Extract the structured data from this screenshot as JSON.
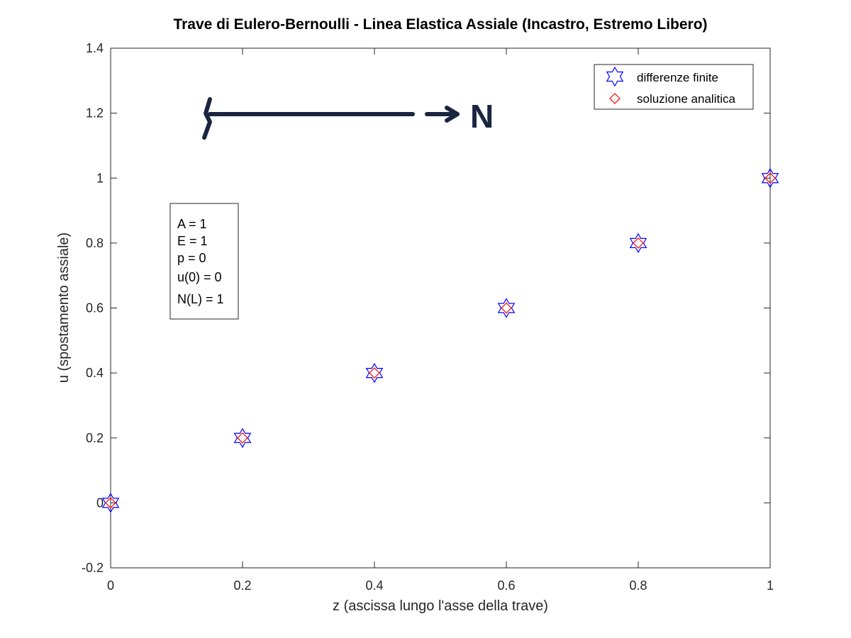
{
  "chart_data": {
    "type": "scatter",
    "title": "Trave di Eulero-Bernoulli - Linea Elastica Assiale (Incastro, Estremo Libero)",
    "xlabel": "z (ascissa lungo l'asse della trave)",
    "ylabel": "u (spostamento assiale)",
    "xlim": [
      0,
      1
    ],
    "ylim": [
      -0.2,
      1.4
    ],
    "xticks": [
      0,
      0.2,
      0.4,
      0.6,
      0.8,
      1
    ],
    "xtick_labels": [
      "0",
      "0.2",
      "0.4",
      "0.6",
      "0.8",
      "1"
    ],
    "yticks": [
      -0.2,
      0,
      0.2,
      0.4,
      0.6,
      0.8,
      1,
      1.2,
      1.4
    ],
    "ytick_labels": [
      "-0.2",
      "0",
      "0.2",
      "0.4",
      "0.6",
      "0.8",
      "1",
      "1.2",
      "1.4"
    ],
    "grid": false,
    "legend_position": "top-right",
    "series": [
      {
        "name": "differenze finite",
        "marker": "hexagram",
        "color": "#0000ff",
        "x": [
          0,
          0.2,
          0.4,
          0.6,
          0.8,
          1
        ],
        "y": [
          0,
          0.2,
          0.4,
          0.6,
          0.8,
          1
        ]
      },
      {
        "name": "soluzione analitica",
        "marker": "diamond",
        "color": "#ff0000",
        "x": [
          0,
          0.2,
          0.4,
          0.6,
          0.8,
          1
        ],
        "y": [
          0,
          0.2,
          0.4,
          0.6,
          0.8,
          1
        ]
      }
    ],
    "annotation_box": {
      "lines": [
        "A = 1",
        "E = 1",
        "p = 0",
        "u(0) = 0",
        "N(L) = 1"
      ]
    },
    "sketch": {
      "label": "N",
      "color": "#1a2540"
    }
  }
}
